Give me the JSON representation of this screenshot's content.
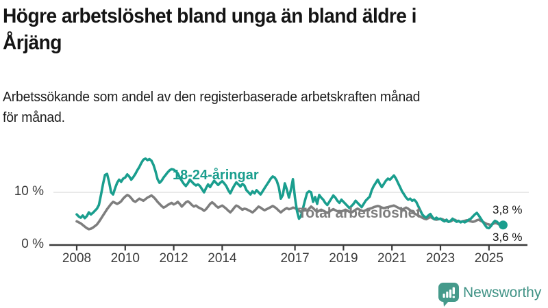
{
  "header": {
    "title": "Högre arbetslöshet bland unga än bland äldre i Årjäng",
    "title_line1": "Högre arbetslöshet bland unga än bland äldre i",
    "title_line2": "Årjäng",
    "subtitle_line1": "Arbetssökande som andel av den registerbaserade arbetskraften månad",
    "subtitle_line2": "för månad."
  },
  "chart_data": {
    "type": "line",
    "title": "Högre arbetslöshet bland unga än bland äldre i Årjäng",
    "subtitle": "Arbetssökande som andel av den registerbaserade arbetskraften månad för månad.",
    "unit": "%",
    "frequency": "monthly",
    "x_start": "2008-01",
    "x_end": "2025-08",
    "x_ticks": [
      2008,
      2010,
      2012,
      2014,
      2017,
      2019,
      2021,
      2023,
      2025
    ],
    "ylim": [
      0,
      17
    ],
    "y_ticks": [
      {
        "value": 0,
        "label": "0 %"
      },
      {
        "value": 10,
        "label": "10 %"
      }
    ],
    "gridlines": [
      10
    ],
    "legend_position": "inline-labels",
    "grid": "horizontal-only",
    "series": [
      {
        "name": "18-24-åringar",
        "color": "#1a9e8e",
        "end_label": "3,8 %",
        "end_value": 3.8,
        "has_end_dot": true,
        "values": [
          5.8,
          5.4,
          5.2,
          5.6,
          5.1,
          5.5,
          6.2,
          5.8,
          6.1,
          6.5,
          6.9,
          7.6,
          9.5,
          11.5,
          13.3,
          13.5,
          12.0,
          10.0,
          9.6,
          10.8,
          11.8,
          12.4,
          12.0,
          12.6,
          12.8,
          13.4,
          13.0,
          12.4,
          12.9,
          13.5,
          14.2,
          14.8,
          15.6,
          16.2,
          16.4,
          16.1,
          16.3,
          16.0,
          15.2,
          14.0,
          12.5,
          11.8,
          12.2,
          12.8,
          13.3,
          13.8,
          14.2,
          14.4,
          14.3,
          14.0,
          13.6,
          12.8,
          12.2,
          11.6,
          11.2,
          11.7,
          12.4,
          12.0,
          11.6,
          11.3,
          11.5,
          11.2,
          10.6,
          10.0,
          10.8,
          11.5,
          11.0,
          11.6,
          12.2,
          11.8,
          11.4,
          11.8,
          12.1,
          11.7,
          11.2,
          10.4,
          9.8,
          10.6,
          11.3,
          11.9,
          11.5,
          11.1,
          11.6,
          11.3,
          10.4,
          10.0,
          9.6,
          10.2,
          9.8,
          10.4,
          10.0,
          9.6,
          10.2,
          10.8,
          11.4,
          12.0,
          12.6,
          13.0,
          12.8,
          12.2,
          11.0,
          8.8,
          9.5,
          11.7,
          10.5,
          9.0,
          10.5,
          12.5,
          9.0,
          6.5,
          5.0,
          5.5,
          7.0,
          8.5,
          9.9,
          10.2,
          10.0,
          8.2,
          9.1,
          7.8,
          9.5,
          9.0,
          8.6,
          8.0,
          7.6,
          8.2,
          8.8,
          9.4,
          9.0,
          8.4,
          8.0,
          8.6,
          8.2,
          7.8,
          7.4,
          7.0,
          7.4,
          7.8,
          8.4,
          8.0,
          7.6,
          7.2,
          7.8,
          8.4,
          8.8,
          9.2,
          10.4,
          11.2,
          11.8,
          12.4,
          11.6,
          11.0,
          11.6,
          12.2,
          12.6,
          12.4,
          12.8,
          13.2,
          12.6,
          11.8,
          11.0,
          10.2,
          9.6,
          9.0,
          8.6,
          8.8,
          8.4,
          8.6,
          8.2,
          7.4,
          6.6,
          5.8,
          5.4,
          5.2,
          5.6,
          5.9,
          5.3,
          4.9,
          5.2,
          4.9,
          5.0,
          4.7,
          4.5,
          4.8,
          4.4,
          4.6,
          5.0,
          4.7,
          4.4,
          4.6,
          4.3,
          4.5,
          4.3,
          4.5,
          4.8,
          5.0,
          5.4,
          5.8,
          6.1,
          5.6,
          5.0,
          4.4,
          3.8,
          3.3,
          3.2,
          3.6,
          4.2,
          4.6,
          4.4,
          4.0,
          3.7,
          3.8
        ]
      },
      {
        "name": "Total arbetslöshet",
        "color": "#7e7e7e",
        "end_label": "3,6 %",
        "end_value": 3.6,
        "has_end_dot": false,
        "values": [
          4.5,
          4.3,
          4.1,
          3.8,
          3.5,
          3.2,
          3.0,
          3.1,
          3.3,
          3.6,
          3.9,
          4.4,
          5.0,
          5.6,
          6.2,
          6.8,
          7.3,
          7.8,
          8.2,
          8.0,
          7.8,
          8.0,
          8.3,
          8.8,
          9.2,
          9.5,
          9.3,
          8.9,
          8.4,
          8.2,
          8.5,
          8.8,
          8.6,
          8.4,
          8.7,
          9.0,
          9.2,
          9.4,
          9.1,
          8.7,
          8.2,
          7.8,
          7.4,
          7.1,
          7.3,
          7.6,
          7.8,
          8.0,
          7.7,
          7.9,
          8.2,
          7.8,
          7.3,
          7.7,
          8.1,
          8.3,
          8.0,
          7.6,
          7.3,
          7.5,
          7.2,
          7.0,
          6.8,
          6.5,
          6.8,
          7.3,
          7.8,
          8.1,
          7.8,
          7.4,
          7.1,
          7.3,
          7.5,
          7.2,
          6.9,
          6.5,
          6.2,
          6.6,
          7.1,
          7.5,
          7.3,
          7.0,
          6.7,
          6.9,
          6.8,
          6.6,
          6.4,
          6.2,
          6.5,
          6.9,
          7.3,
          7.1,
          6.8,
          6.6,
          6.8,
          7.0,
          7.2,
          7.4,
          7.2,
          6.9,
          6.5,
          6.2,
          6.5,
          6.8,
          7.0,
          6.8,
          6.9,
          7.1,
          7.0,
          6.8,
          6.5,
          6.3,
          6.5,
          6.6,
          6.5,
          6.9,
          7.3,
          7.0,
          6.6,
          6.3,
          6.5,
          6.7,
          6.5,
          6.3,
          6.1,
          6.3,
          6.6,
          6.8,
          6.6,
          6.4,
          6.2,
          6.4,
          6.5,
          6.7,
          6.5,
          6.3,
          6.2,
          6.4,
          6.7,
          6.9,
          6.7,
          6.5,
          6.4,
          6.6,
          6.8,
          6.9,
          7.0,
          7.2,
          7.3,
          7.4,
          7.3,
          7.1,
          7.0,
          7.1,
          7.2,
          7.3,
          7.4,
          7.5,
          7.3,
          7.1,
          6.9,
          6.7,
          6.9,
          7.1,
          6.9,
          6.6,
          6.3,
          6.0,
          5.8,
          5.6,
          5.4,
          5.2,
          5.0,
          4.9,
          5.1,
          5.3,
          5.1,
          4.9,
          4.8,
          4.9,
          5.0,
          4.9,
          4.7,
          4.6,
          4.4,
          4.5,
          4.7,
          4.8,
          4.6,
          4.5,
          4.4,
          4.5,
          4.6,
          4.7,
          4.6,
          4.5,
          4.4,
          4.5,
          4.7,
          4.8,
          4.6,
          4.4,
          4.2,
          4.0,
          3.9,
          3.8,
          4.0,
          4.2,
          4.1,
          3.9,
          3.7,
          3.6
        ]
      }
    ]
  },
  "footer": {
    "brand": "Newsworthy",
    "brand_color": "#3f9285",
    "logo_icon": "bar-chart-speech-bubble-icon"
  },
  "colors": {
    "youth_line": "#1a9e8e",
    "total_line": "#7e7e7e",
    "gridline": "#dcdcdc",
    "axis": "#3a3a3a"
  }
}
